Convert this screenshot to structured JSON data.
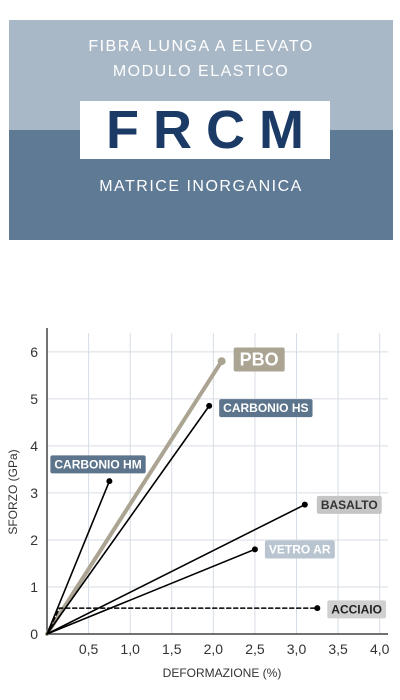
{
  "header": {
    "line1": "FIBRA LUNGA A ELEVATO",
    "line2": "MODULO ELASTICO",
    "brand": "FRCM",
    "subtitle": "MATRICE INORGANICA"
  },
  "colors": {
    "banner_light": "#a9b8c7",
    "banner_dark": "#5e7a94",
    "brand_text": "#1b3a66",
    "pbo": "#aba493",
    "carbonio_hm": "#5d758c",
    "carbonio_hs": "#5d758c",
    "basalto": "#c5c5c5",
    "vetro_ar": "#b8c4d0",
    "acciaio": "#d0d0d0"
  },
  "chart_data": {
    "type": "line",
    "xlabel": "DEFORMAZIONE (%)",
    "ylabel": "SFORZO (GPa)",
    "xlim": [
      0,
      4.1
    ],
    "ylim": [
      0,
      6.4
    ],
    "xticks": [
      0,
      0.5,
      1.0,
      1.5,
      2.0,
      2.5,
      3.0,
      3.5,
      4.0
    ],
    "xtick_labels": [
      "0",
      "0,5",
      "1,0",
      "1,5",
      "2,0",
      "2,5",
      "3,0",
      "3,5",
      "4,0"
    ],
    "yticks": [
      0,
      1,
      2,
      3,
      4,
      5,
      6
    ],
    "ytick_labels": [
      "0",
      "1",
      "2",
      "3",
      "4",
      "5",
      "6"
    ],
    "grid": true,
    "series": [
      {
        "name": "PBO",
        "points": [
          [
            0,
            0
          ],
          [
            2.1,
            5.8
          ]
        ],
        "style": "thick",
        "color": "#aba493",
        "label_bg": "#aba493"
      },
      {
        "name": "CARBONIO HS",
        "points": [
          [
            0,
            0
          ],
          [
            1.95,
            4.85
          ]
        ],
        "style": "solid",
        "color": "#000000",
        "label_bg": "#5d758c"
      },
      {
        "name": "CARBONIO HM",
        "points": [
          [
            0,
            0
          ],
          [
            0.75,
            3.25
          ]
        ],
        "style": "solid",
        "color": "#000000",
        "label_bg": "#5d758c"
      },
      {
        "name": "BASALTO",
        "points": [
          [
            0,
            0
          ],
          [
            3.1,
            2.75
          ]
        ],
        "style": "solid",
        "color": "#000000",
        "label_bg": "#c5c5c5"
      },
      {
        "name": "VETRO AR",
        "points": [
          [
            0,
            0
          ],
          [
            2.5,
            1.8
          ]
        ],
        "style": "solid",
        "color": "#000000",
        "label_bg": "#b8c4d0"
      },
      {
        "name": "ACCIAIO",
        "points": [
          [
            0,
            0
          ],
          [
            0.15,
            0.55
          ],
          [
            3.25,
            0.55
          ]
        ],
        "style": "dashed",
        "color": "#000000",
        "label_bg": "#d0d0d0"
      }
    ]
  }
}
